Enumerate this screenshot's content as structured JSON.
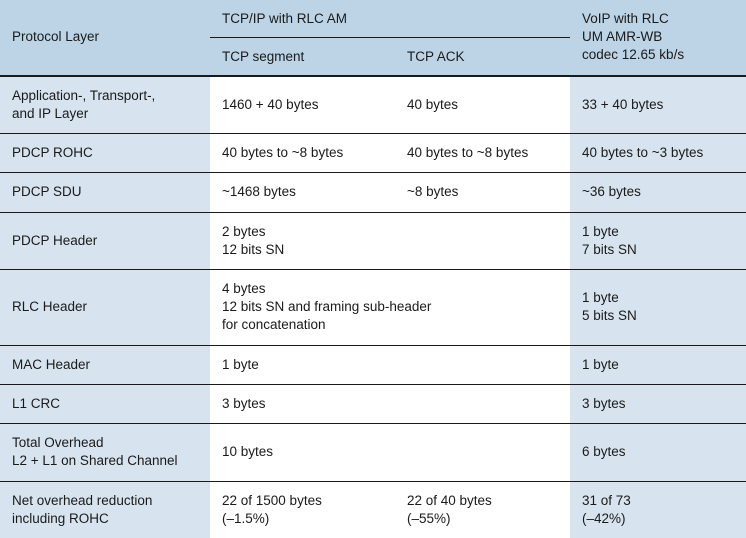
{
  "colors": {
    "header_bg": "#bcd4e6",
    "row_bg": "#d7e4ef",
    "text": "#1a1a1a",
    "border": "#1a1a1a"
  },
  "fontsize_pt": 10,
  "header": {
    "protocol_layer": "Protocol Layer",
    "tcpip": "TCP/IP with RLC AM",
    "tcp_segment": "TCP segment",
    "tcp_ack": "TCP ACK",
    "voip": "VoIP with RLC\nUM AMR-WB\ncodec 12.65 kb/s"
  },
  "rows": [
    {
      "label": "Application-, Transport-,\nand IP Layer",
      "c1": "1460 + 40 bytes",
      "c2": "40 bytes",
      "c3": "33 + 40 bytes"
    },
    {
      "label": "PDCP ROHC",
      "c1": "40 bytes to ~8 bytes",
      "c2": "40 bytes to ~8 bytes",
      "c3": "40 bytes to ~3 bytes"
    },
    {
      "label": "PDCP SDU",
      "c1": "~1468 bytes",
      "c2": "~8 bytes",
      "c3": "~36 bytes"
    },
    {
      "label": "PDCP Header",
      "c12": "2 bytes\n12 bits SN",
      "c3": "1 byte\n7 bits SN"
    },
    {
      "label": "RLC Header",
      "c12": "4 bytes\n12 bits SN and framing sub-header\nfor concatenation",
      "c3": "1 byte\n5 bits SN"
    },
    {
      "label": "MAC Header",
      "c12": "1 byte",
      "c3": "1 byte"
    },
    {
      "label": "L1 CRC",
      "c12": "3 bytes",
      "c3": "3 bytes"
    },
    {
      "label": "Total Overhead\nL2 + L1 on Shared Channel",
      "c12": "10 bytes",
      "c3": "6 bytes"
    },
    {
      "label": "Net overhead reduction\nincluding ROHC",
      "c1": "22 of 1500 bytes\n(–1.5%)",
      "c2": "22 of 40 bytes\n(–55%)",
      "c3": "31 of 73\n(–42%)"
    }
  ]
}
